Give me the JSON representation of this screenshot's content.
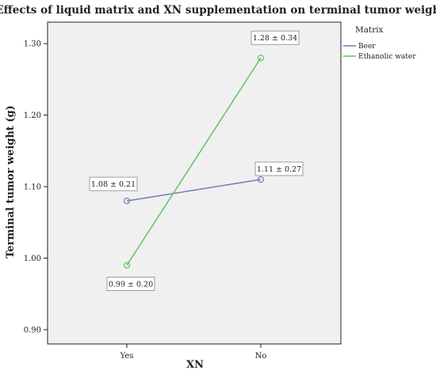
{
  "chart_data": {
    "type": "line",
    "title": "Effects of liquid matrix and XN supplementation on terminal tumor weight",
    "xlabel": "XN",
    "ylabel": "Terminal tumor weight (g)",
    "categories": [
      "Yes",
      "No"
    ],
    "ylim": [
      0.88,
      1.33
    ],
    "yticks": [
      0.9,
      1.0,
      1.1,
      1.2,
      1.3
    ],
    "ytick_labels": [
      "0.90",
      "1.00",
      "1.10",
      "1.20",
      "1.30"
    ],
    "grid": false,
    "legend": {
      "title": "Matrix",
      "position": "right"
    },
    "series": [
      {
        "name": "Beer",
        "color": "#6f7fb8",
        "values": [
          1.08,
          1.11
        ],
        "labels": [
          "1.08 ± 0.21",
          "1.11 ± 0.27"
        ]
      },
      {
        "name": "Ethanolic water",
        "color": "#5fc35f",
        "values": [
          0.99,
          1.28
        ],
        "labels": [
          "0.99 ± 0.20",
          "1.28 ± 0.34"
        ]
      }
    ]
  }
}
